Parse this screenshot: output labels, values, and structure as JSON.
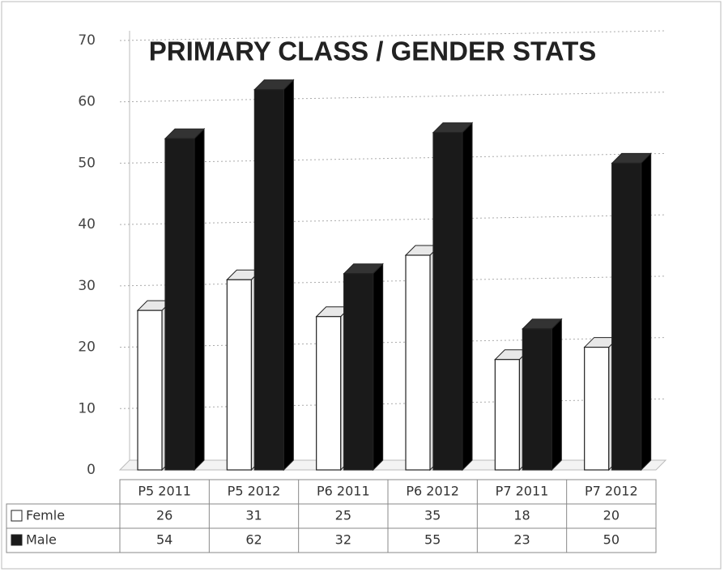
{
  "chart_data": {
    "type": "bar",
    "title": "PRIMARY CLASS / GENDER STATS",
    "categories": [
      "P5 2011",
      "P5 2012",
      "P6 2011",
      "P6 2012",
      "P7 2011",
      "P7 2012"
    ],
    "series": [
      {
        "name": "Femle",
        "color": "#ffffff",
        "values": [
          26,
          31,
          25,
          35,
          18,
          20
        ]
      },
      {
        "name": "Male",
        "color": "#1a1a1a",
        "values": [
          54,
          62,
          32,
          55,
          23,
          50
        ]
      }
    ],
    "ylim": [
      0,
      70
    ],
    "yticks": [
      0,
      10,
      20,
      30,
      40,
      50,
      60,
      70
    ],
    "grid": true
  }
}
